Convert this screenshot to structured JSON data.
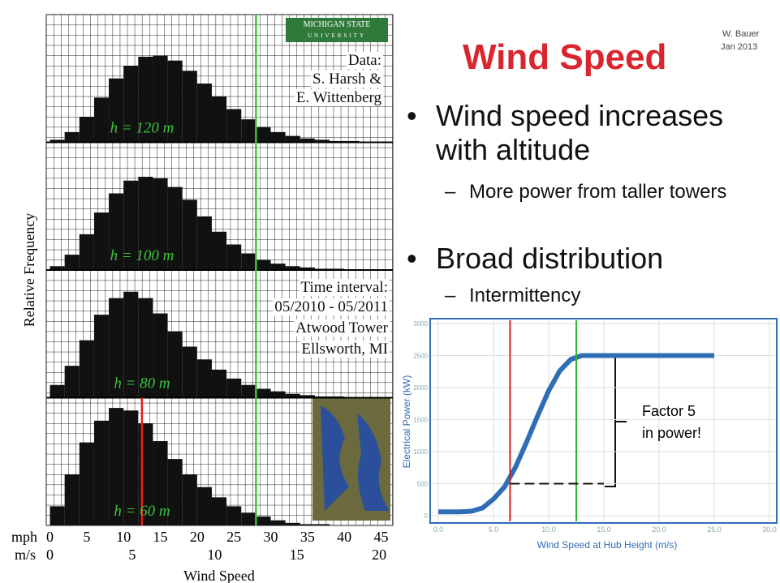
{
  "slide": {
    "title": "Wind Speed",
    "author": "W. Bauer",
    "date": "Jan 2013",
    "bullets": [
      {
        "text": "Wind speed increases with altitude",
        "sub": [
          "More power from taller towers"
        ]
      },
      {
        "text": "Broad distribution",
        "sub": [
          "Intermittency"
        ]
      }
    ]
  },
  "chart_data": [
    {
      "type": "histogram",
      "xlabel": "Wind Speed",
      "ylabel": "Relative Frequency",
      "x_unit": "mph",
      "x2_unit": "m/s",
      "xlim": [
        -0.5,
        46.6
      ],
      "ylim": [
        0,
        1
      ],
      "xticks": [
        0,
        5,
        10,
        15,
        20,
        25,
        30,
        35,
        40,
        45
      ],
      "x2ticks": [
        0,
        {
          "value": 11.18,
          "label": "5"
        },
        {
          "value": 22.37,
          "label": "10"
        },
        {
          "value": 33.55,
          "label": "15"
        },
        {
          "value": 44.74,
          "label": "20"
        }
      ],
      "bins": [
        0,
        2,
        4,
        6,
        8,
        10,
        12,
        14,
        16,
        18,
        20,
        22,
        24,
        26,
        28,
        30,
        32,
        34,
        36,
        38,
        40,
        42,
        44,
        46
      ],
      "series": [
        {
          "name": "h = 120 m",
          "color": "#111111",
          "values": [
            0.02,
            0.08,
            0.2,
            0.35,
            0.5,
            0.6,
            0.67,
            0.68,
            0.64,
            0.56,
            0.46,
            0.36,
            0.26,
            0.18,
            0.12,
            0.08,
            0.05,
            0.03,
            0.02,
            0.01,
            0.01,
            0,
            0
          ]
        },
        {
          "name": "h = 100 m",
          "color": "#111111",
          "values": [
            0.03,
            0.12,
            0.28,
            0.45,
            0.6,
            0.7,
            0.73,
            0.72,
            0.65,
            0.55,
            0.42,
            0.3,
            0.2,
            0.13,
            0.08,
            0.05,
            0.03,
            0.02,
            0.01,
            0.01,
            0,
            0,
            0
          ]
        },
        {
          "name": "h = 80 m",
          "color": "#111111",
          "values": [
            0.1,
            0.25,
            0.45,
            0.65,
            0.78,
            0.83,
            0.78,
            0.66,
            0.52,
            0.4,
            0.3,
            0.22,
            0.15,
            0.1,
            0.07,
            0.05,
            0.03,
            0.02,
            0.01,
            0.01,
            0,
            0,
            0
          ]
        },
        {
          "name": "h = 60 m",
          "color": "#111111",
          "values": [
            0.15,
            0.4,
            0.65,
            0.82,
            0.92,
            0.9,
            0.8,
            0.66,
            0.52,
            0.4,
            0.3,
            0.22,
            0.15,
            0.1,
            0.07,
            0.04,
            0.02,
            0.01,
            0.01,
            0,
            0,
            0,
            0
          ],
          "vlines": [
            {
              "value": 12.5,
              "color": "#e02020"
            }
          ]
        }
      ],
      "vlines": [
        {
          "value": 28,
          "color": "#33cc33"
        }
      ],
      "logo": [
        "MICHIGAN STATE",
        "UNIVERSITY"
      ],
      "annotations": [
        "Data:",
        "S. Harsh &",
        "E. Wittenberg",
        "Time interval:",
        "05/2010 - 05/2011",
        "Atwood Tower",
        "Ellsworth, MI"
      ]
    },
    {
      "type": "line",
      "xlabel": "Wind Speed at Hub Height (m/s)",
      "ylabel": "Electrical Power (kW)",
      "x": [
        0,
        1,
        2,
        3,
        4,
        5,
        6,
        7,
        8,
        9,
        10,
        11,
        12,
        13,
        14,
        15,
        16,
        17,
        18,
        19,
        20,
        21,
        22,
        23,
        24,
        25
      ],
      "values": [
        60,
        60,
        60,
        70,
        120,
        260,
        450,
        760,
        1150,
        1560,
        1950,
        2260,
        2440,
        2500,
        2500,
        2500,
        2500,
        2500,
        2500,
        2500,
        2500,
        2500,
        2500,
        2500,
        2500,
        2500
      ],
      "color": "#2f6db5",
      "xlim": [
        0,
        30
      ],
      "ylim": [
        0,
        3000
      ],
      "xticks": [
        {
          "value": 0,
          "label": "0.0"
        },
        {
          "value": 5,
          "label": "5.0"
        },
        {
          "value": 10,
          "label": "10.0"
        },
        {
          "value": 15,
          "label": "15.0"
        },
        {
          "value": 20,
          "label": "20.0"
        },
        {
          "value": 25,
          "label": "25.0"
        },
        {
          "value": 30,
          "label": "30.0"
        }
      ],
      "yticks": [
        0,
        500,
        1000,
        1500,
        2000,
        2500,
        3000
      ],
      "grid": true,
      "vlines": [
        {
          "value": 6.5,
          "color": "#e02020"
        },
        {
          "value": 12.5,
          "color": "#2db52d"
        }
      ],
      "dashed_lines": [
        {
          "y": 500,
          "x": [
            6.5,
            15
          ]
        }
      ],
      "annotation": [
        "Factor 5",
        "in power!"
      ]
    }
  ]
}
